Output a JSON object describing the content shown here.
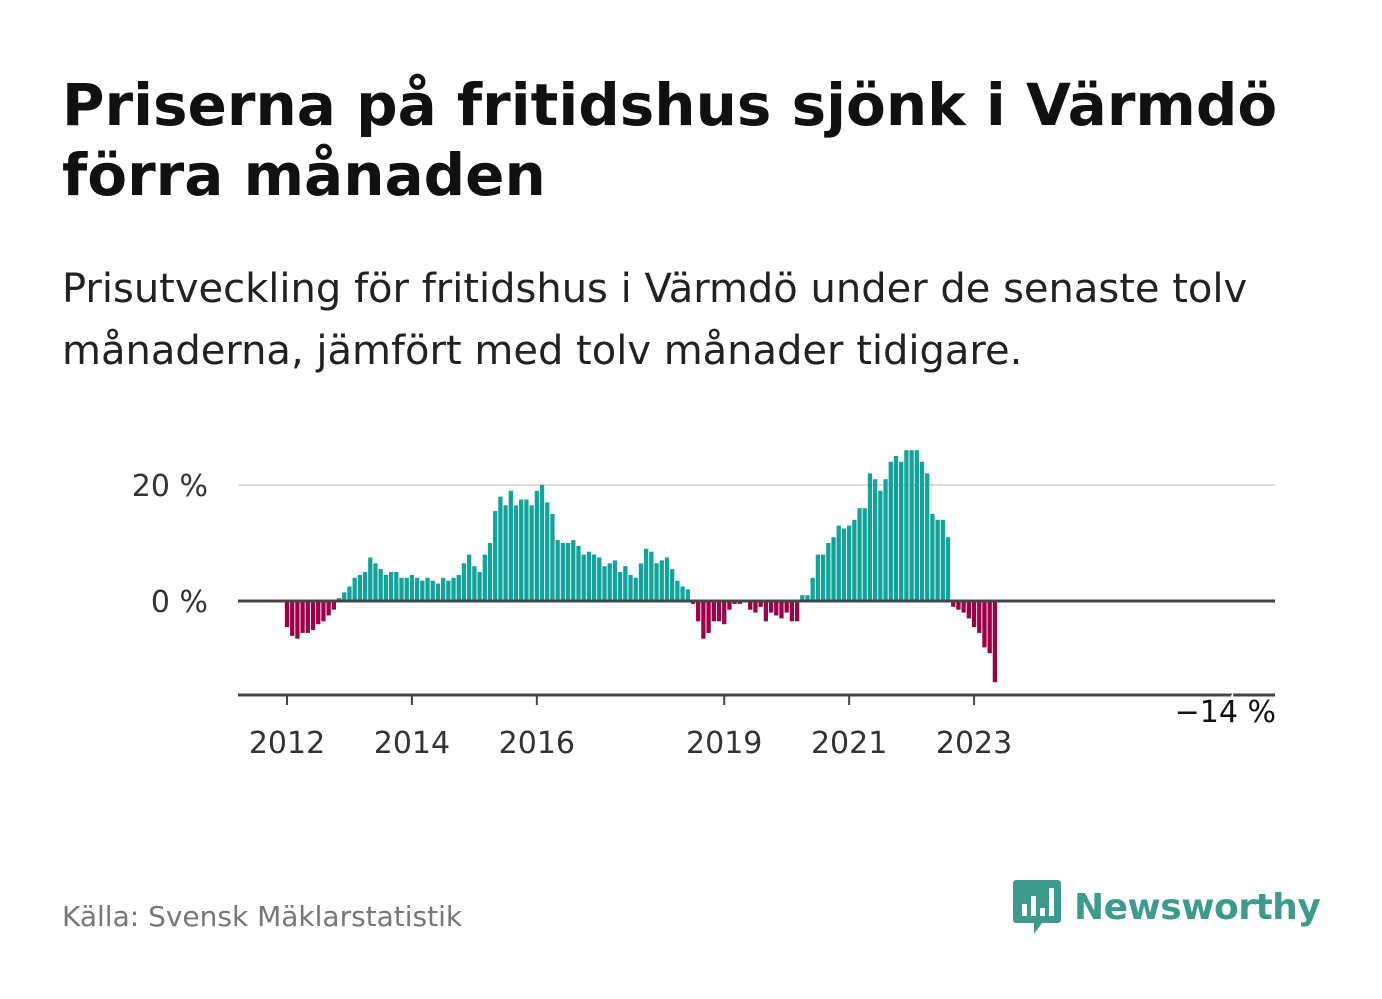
{
  "title": "Priserna på fritidshus sjönk i Värmdö förra månaden",
  "subtitle": "Prisutveckling för fritidshus i Värmdö under de senaste tolv månaderna, jämfört med tolv månader tidigare.",
  "source": "Källa: Svensk Mäklarstatistik",
  "brand": "Newsworthy",
  "colors": {
    "positive": "#12a39a",
    "negative": "#9e0048",
    "axis": "#444444",
    "grid": "#dddddd",
    "brand": "#3c9b8c"
  },
  "chart_data": {
    "type": "bar",
    "title": "Prisutveckling för fritidshus i Värmdö",
    "xlabel": "",
    "ylabel": "",
    "ylim": [
      -16,
      26
    ],
    "y_ticks": [
      {
        "value": 0,
        "label": "0 %"
      },
      {
        "value": 20,
        "label": "20 %"
      }
    ],
    "x_ticks": [
      {
        "index": 0,
        "label": "2012"
      },
      {
        "index": 24,
        "label": "2014"
      },
      {
        "index": 48,
        "label": "2016"
      },
      {
        "index": 84,
        "label": "2019"
      },
      {
        "index": 108,
        "label": "2021"
      },
      {
        "index": 132,
        "label": "2023"
      }
    ],
    "start": "2012-01",
    "values": [
      -4.5,
      -6,
      -6.5,
      -5.5,
      -5.5,
      -5,
      -4,
      -3.5,
      -2.5,
      -1.5,
      0.5,
      1.5,
      2.5,
      4,
      4.5,
      5,
      7.5,
      6.5,
      5.5,
      4.5,
      5,
      5,
      4,
      4,
      4.5,
      4,
      3.5,
      4,
      3.5,
      3,
      4,
      3.5,
      4,
      4.5,
      6.5,
      8,
      6,
      5,
      8,
      10,
      15.5,
      18,
      16.5,
      19,
      16.5,
      17.5,
      17.5,
      16.5,
      19,
      20,
      17,
      15,
      10.5,
      10,
      10,
      10.5,
      9.5,
      8,
      8.5,
      8,
      7.5,
      6,
      6.5,
      7,
      5,
      6,
      4.5,
      4,
      6.5,
      9,
      8.5,
      6.5,
      7,
      7.5,
      5.5,
      3.5,
      2.5,
      2,
      -0.5,
      -3.5,
      -6.5,
      -5.5,
      -3.5,
      -3.5,
      -4,
      -1.5,
      -0.5,
      -0.5,
      0,
      -1.5,
      -2,
      -1,
      -3.5,
      -2,
      -2.5,
      -3,
      -2,
      -3.5,
      -3.5,
      1,
      1,
      4,
      8,
      8,
      10,
      11,
      13,
      12.5,
      13,
      14,
      16,
      16,
      22,
      21,
      19,
      21,
      24,
      25,
      24,
      26,
      26,
      26,
      24,
      22,
      15,
      14,
      14,
      11,
      -1,
      -1.5,
      -2,
      -3,
      -4.5,
      -5.5,
      -8,
      -9,
      -14
    ],
    "last_label": "−14 %"
  }
}
